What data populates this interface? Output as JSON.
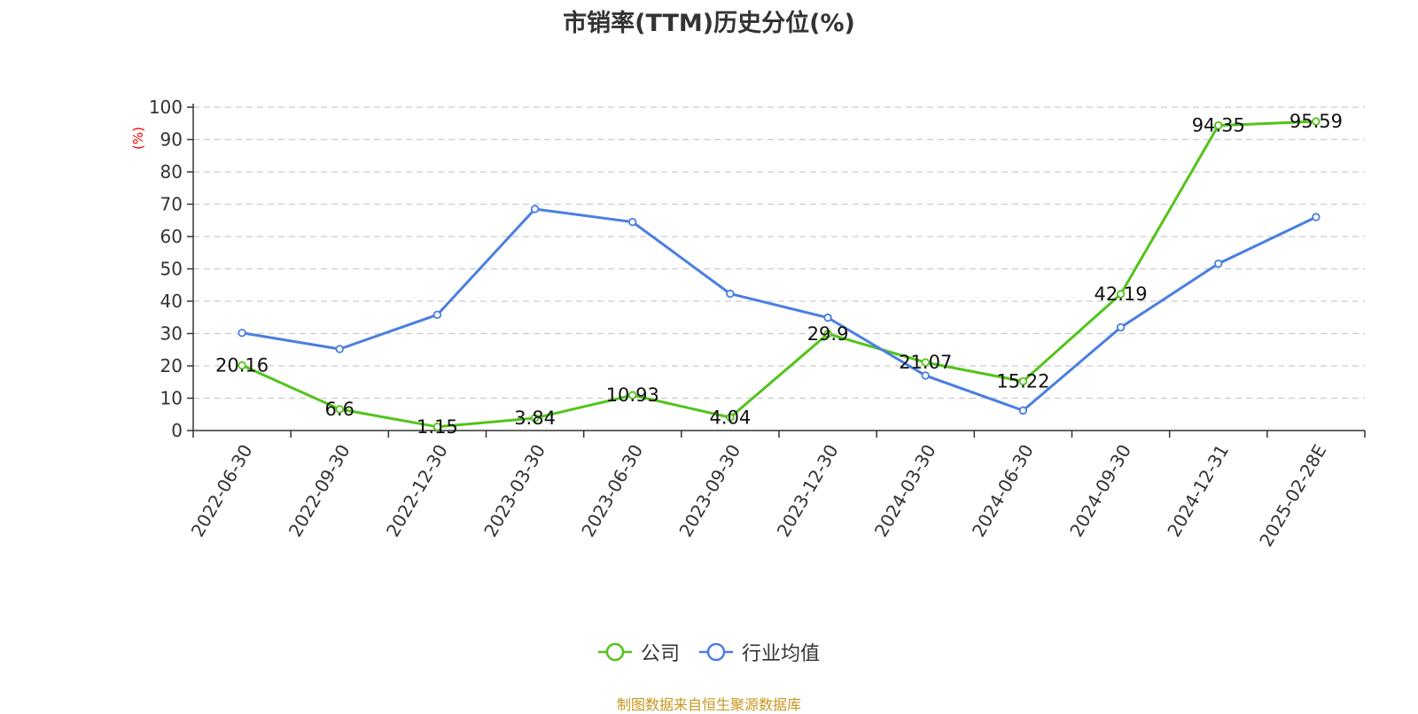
{
  "title": "市销率(TTM)历史分位(%)",
  "source_note": "制图数据来自恒生聚源数据库",
  "colors": {
    "company": "#52c41a",
    "industry": "#4a7fe0",
    "unit_label": "#ff0000",
    "source_note": "#c8961e",
    "grid": "#cccccc",
    "axis": "#333333"
  },
  "chart_data": {
    "type": "line",
    "title": "市销率(TTM)历史分位(%)",
    "ylabel": "(%)",
    "xlabel": "",
    "ylim": [
      0,
      100
    ],
    "yticks": [
      0,
      10,
      20,
      30,
      40,
      50,
      60,
      70,
      80,
      90,
      100
    ],
    "grid": true,
    "legend_position": "bottom",
    "categories": [
      "2022-06-30",
      "2022-09-30",
      "2022-12-30",
      "2023-03-30",
      "2023-06-30",
      "2023-09-30",
      "2023-12-30",
      "2024-03-30",
      "2024-06-30",
      "2024-09-30",
      "2024-12-31",
      "2025-02-28E"
    ],
    "series": [
      {
        "name": "公司",
        "values": [
          20.16,
          6.6,
          1.15,
          3.84,
          10.93,
          4.04,
          29.9,
          21.07,
          15.22,
          42.19,
          94.35,
          95.59
        ],
        "labels": [
          "20.16",
          "6.6",
          "1.15",
          "3.84",
          "10.93",
          "4.04",
          "29.9",
          "21.07",
          "15.22",
          "42.19",
          "94.35",
          "95.59"
        ],
        "show_labels": true
      },
      {
        "name": "行业均值",
        "values": [
          30.2,
          25.2,
          35.8,
          68.5,
          64.5,
          42.3,
          34.9,
          17.0,
          6.2,
          31.9,
          51.6,
          66.0
        ],
        "show_labels": false
      }
    ]
  }
}
